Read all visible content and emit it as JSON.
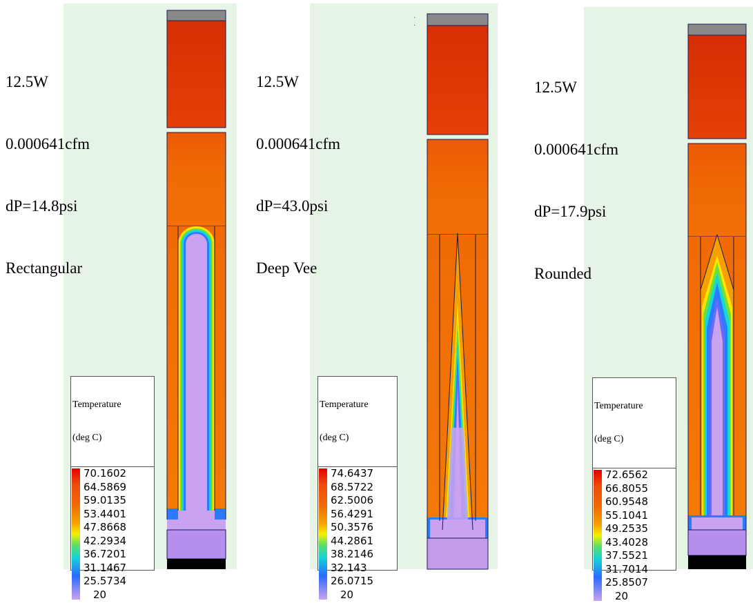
{
  "panels": [
    {
      "id": "rectangular",
      "caption": [
        "12.5W",
        "0.000641cfm",
        "dP=14.8psi",
        "Rectangular"
      ],
      "legend": {
        "title": [
          "Temperature",
          "(deg C)"
        ],
        "values": [
          "70.1602",
          "64.5869",
          "59.0135",
          "53.4401",
          "47.8668",
          "42.2934",
          "36.7201",
          "31.1467",
          "25.5734",
          "20"
        ]
      }
    },
    {
      "id": "deep-vee",
      "caption": [
        "12.5W",
        "0.000641cfm",
        "dP=43.0psi",
        "Deep Vee"
      ],
      "legend": {
        "title": [
          "Temperature",
          "(deg C)"
        ],
        "values": [
          "74.6437",
          "68.5722",
          "62.5006",
          "56.4291",
          "50.3576",
          "44.2861",
          "38.2146",
          "32.143",
          "26.0715",
          "20"
        ]
      }
    },
    {
      "id": "rounded",
      "caption": [
        "12.5W",
        "0.000641cfm",
        "dP=17.9psi",
        "Rounded"
      ],
      "legend": {
        "title": [
          "Temperature",
          "(deg C)"
        ],
        "values": [
          "72.6562",
          "66.8055",
          "60.9548",
          "55.1041",
          "49.2535",
          "43.4028",
          "37.5521",
          "31.7014",
          "25.8507",
          "20"
        ]
      }
    }
  ],
  "colors": {
    "background": "#e6f4e6",
    "hot_top": "#dd3a06",
    "body_upper": "#ed5e05",
    "body_lower": "#f06c05",
    "cool_fluid": "#c8a0ee",
    "cap": "#8a8a8a",
    "bottom_block": "#b890ec",
    "outline": "#1a1a55"
  }
}
